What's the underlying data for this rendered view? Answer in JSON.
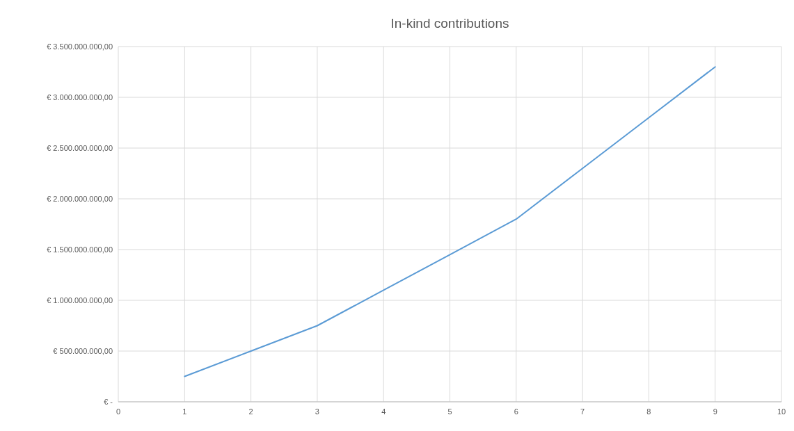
{
  "chart_data": {
    "type": "line",
    "title": "In-kind contributions",
    "x": [
      1,
      2,
      3,
      4,
      5,
      6,
      7,
      8,
      9
    ],
    "series": [
      {
        "color": "#5b9bd5",
        "values": [
          250000000,
          500000000,
          750000000,
          1100000000,
          1450000000,
          1800000000,
          2300000000,
          2800000000,
          3300000000
        ]
      }
    ],
    "xlim": [
      0,
      10
    ],
    "xticks": [
      0,
      1,
      2,
      3,
      4,
      5,
      6,
      7,
      8,
      9,
      10
    ],
    "ylim": [
      0,
      3500000000
    ],
    "yticks": [
      {
        "value": 0,
        "label": "€ -"
      },
      {
        "value": 500000000,
        "label": "€ 500.000.000,00"
      },
      {
        "value": 1000000000,
        "label": "€ 1.000.000.000,00"
      },
      {
        "value": 1500000000,
        "label": "€ 1.500.000.000,00"
      },
      {
        "value": 2000000000,
        "label": "€ 2.000.000.000,00"
      },
      {
        "value": 2500000000,
        "label": "€ 2.500.000.000,00"
      },
      {
        "value": 3000000000,
        "label": "€ 3.000.000.000,00"
      },
      {
        "value": 3500000000,
        "label": "€ 3.500.000.000,00"
      }
    ],
    "grid": true,
    "marker": "none",
    "line_style": "solid"
  }
}
